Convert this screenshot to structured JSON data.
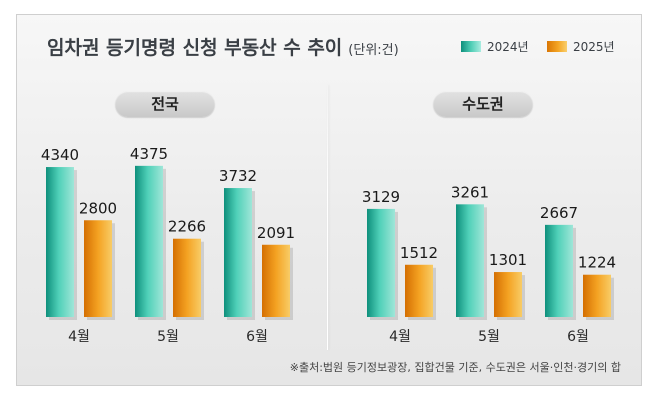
{
  "title": "임차권 등기명령 신청 부동산 수 추이",
  "unit": "(단위:건)",
  "legend": [
    {
      "label": "2024년",
      "color": "#3cc2a8"
    },
    {
      "label": "2025년",
      "color": "#f0a020"
    }
  ],
  "source": "※출처:법원 등기정보광장, 집합건물 기준, 수도권은 서울·인천·경기의 합",
  "chart_data": [
    {
      "type": "bar",
      "panel_label": "전국",
      "categories": [
        "4월",
        "5월",
        "6월"
      ],
      "series": [
        {
          "name": "2024년",
          "values": [
            4340,
            4375,
            3732
          ]
        },
        {
          "name": "2025년",
          "values": [
            2800,
            2266,
            2091
          ]
        }
      ],
      "ylim": [
        0,
        4500
      ],
      "grid": false
    },
    {
      "type": "bar",
      "panel_label": "수도권",
      "categories": [
        "4월",
        "5월",
        "6월"
      ],
      "series": [
        {
          "name": "2024년",
          "values": [
            3129,
            3261,
            2667
          ]
        },
        {
          "name": "2025년",
          "values": [
            1512,
            1301,
            1224
          ]
        }
      ],
      "ylim": [
        0,
        4500
      ],
      "grid": false
    }
  ]
}
